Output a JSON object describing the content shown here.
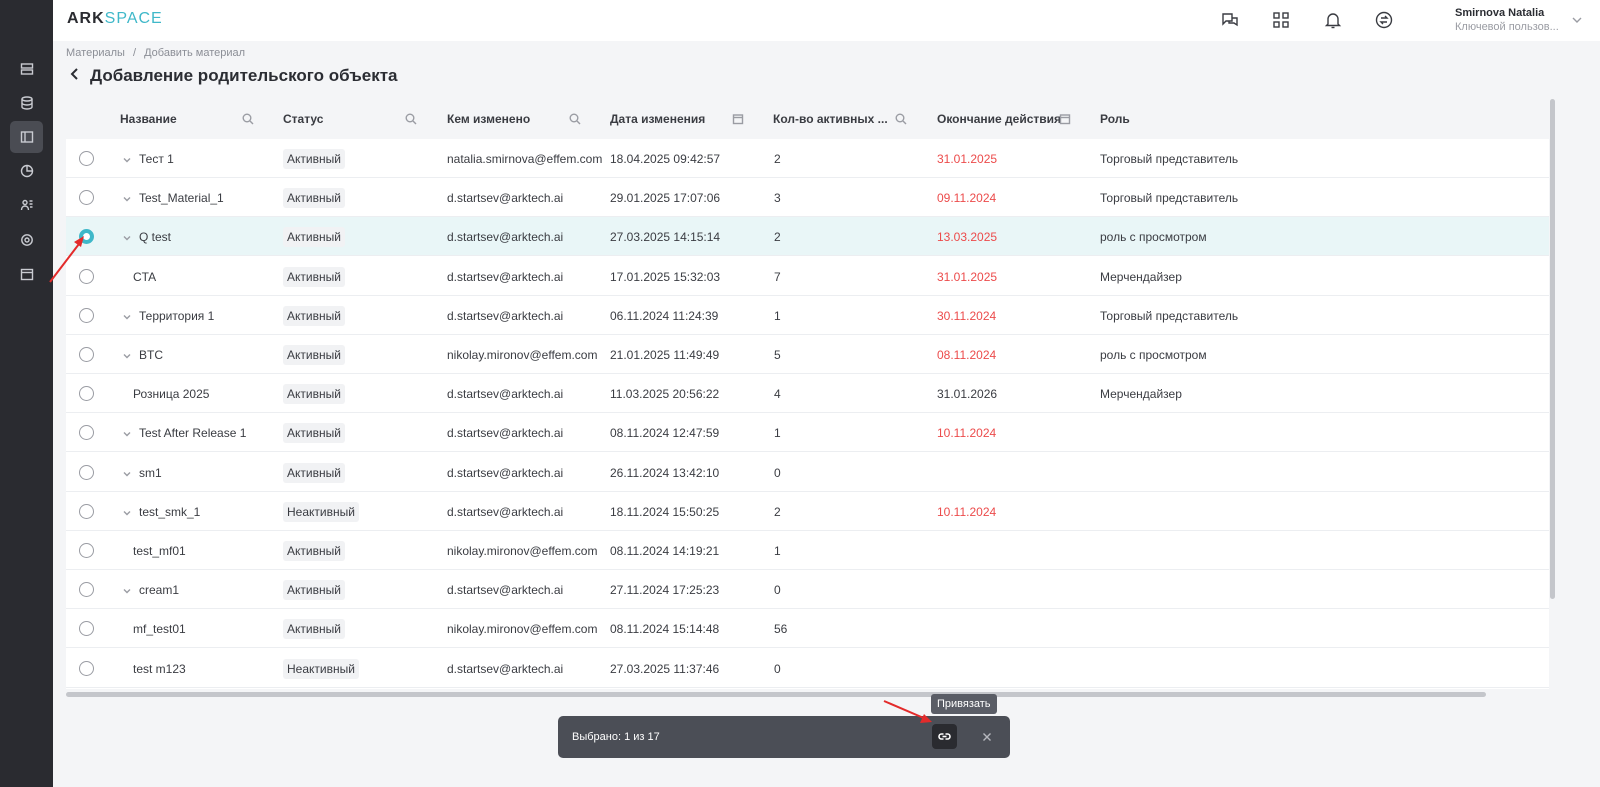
{
  "app": {
    "logo_part1": "ARK",
    "logo_part2": "SPACE"
  },
  "user": {
    "name": "Smirnova Natalia",
    "role": "Ключевой пользов..."
  },
  "breadcrumb": {
    "item1": "Материалы",
    "sep": "/",
    "item2": "Добавить материал"
  },
  "page": {
    "title": "Добавление родительского объекта"
  },
  "table": {
    "headers": {
      "name": "Название",
      "status": "Статус",
      "changed_by": "Кем изменено",
      "changed_at": "Дата изменения",
      "active_count": "Кол-во активных ...",
      "end_date": "Окончание действия",
      "role": "Роль"
    },
    "rows": [
      {
        "name": "Тест 1",
        "expandable": true,
        "status": "Активный",
        "changed_by": "natalia.smirnova@effem.com",
        "changed_at": "18.04.2025 09:42:57",
        "count": "2",
        "end_date": "31.01.2025",
        "end_red": true,
        "role": "Торговый представитель"
      },
      {
        "name": "Test_Material_1",
        "expandable": true,
        "status": "Активный",
        "changed_by": "d.startsev@arktech.ai",
        "changed_at": "29.01.2025 17:07:06",
        "count": "3",
        "end_date": "09.11.2024",
        "end_red": true,
        "role": "Торговый представитель"
      },
      {
        "name": "Q test",
        "expandable": true,
        "status": "Активный",
        "changed_by": "d.startsev@arktech.ai",
        "changed_at": "27.03.2025 14:15:14",
        "count": "2",
        "end_date": "13.03.2025",
        "end_red": true,
        "role": "роль с просмотром",
        "selected": true
      },
      {
        "name": "CTA",
        "expandable": false,
        "status": "Активный",
        "changed_by": "d.startsev@arktech.ai",
        "changed_at": "17.01.2025 15:32:03",
        "count": "7",
        "end_date": "31.01.2025",
        "end_red": true,
        "role": "Мерчендайзер"
      },
      {
        "name": "Территория 1",
        "expandable": true,
        "status": "Активный",
        "changed_by": "d.startsev@arktech.ai",
        "changed_at": "06.11.2024 11:24:39",
        "count": "1",
        "end_date": "30.11.2024",
        "end_red": true,
        "role": "Торговый представитель"
      },
      {
        "name": "BTC",
        "expandable": true,
        "status": "Активный",
        "changed_by": "nikolay.mironov@effem.com",
        "changed_at": "21.01.2025 11:49:49",
        "count": "5",
        "end_date": "08.11.2024",
        "end_red": true,
        "role": "роль с просмотром"
      },
      {
        "name": "Розница 2025",
        "expandable": false,
        "status": "Активный",
        "changed_by": "d.startsev@arktech.ai",
        "changed_at": "11.03.2025 20:56:22",
        "count": "4",
        "end_date": "31.01.2026",
        "end_red": false,
        "role": "Мерчендайзер"
      },
      {
        "name": "Test After Release 1",
        "expandable": true,
        "status": "Активный",
        "changed_by": "d.startsev@arktech.ai",
        "changed_at": "08.11.2024 12:47:59",
        "count": "1",
        "end_date": "10.11.2024",
        "end_red": true,
        "role": ""
      },
      {
        "name": "sm1",
        "expandable": true,
        "status": "Активный",
        "changed_by": "d.startsev@arktech.ai",
        "changed_at": "26.11.2024 13:42:10",
        "count": "0",
        "end_date": "",
        "end_red": false,
        "role": ""
      },
      {
        "name": "test_smk_1",
        "expandable": true,
        "status": "Неактивный",
        "changed_by": "d.startsev@arktech.ai",
        "changed_at": "18.11.2024 15:50:25",
        "count": "2",
        "end_date": "10.11.2024",
        "end_red": true,
        "role": ""
      },
      {
        "name": "test_mf01",
        "expandable": false,
        "status": "Активный",
        "changed_by": "nikolay.mironov@effem.com",
        "changed_at": "08.11.2024 14:19:21",
        "count": "1",
        "end_date": "",
        "end_red": false,
        "role": ""
      },
      {
        "name": "cream1",
        "expandable": true,
        "status": "Активный",
        "changed_by": "d.startsev@arktech.ai",
        "changed_at": "27.11.2024 17:25:23",
        "count": "0",
        "end_date": "",
        "end_red": false,
        "role": ""
      },
      {
        "name": "mf_test01",
        "expandable": false,
        "status": "Активный",
        "changed_by": "nikolay.mironov@effem.com",
        "changed_at": "08.11.2024 15:14:48",
        "count": "56",
        "end_date": "",
        "end_red": false,
        "role": ""
      },
      {
        "name": "test m123",
        "expandable": false,
        "status": "Неактивный",
        "changed_by": "d.startsev@arktech.ai",
        "changed_at": "27.03.2025 11:37:46",
        "count": "0",
        "end_date": "",
        "end_red": false,
        "role": ""
      }
    ]
  },
  "actionbar": {
    "selected_text": "Выбрано: 1 из 17",
    "tooltip": "Привязать"
  },
  "colors": {
    "accent": "#3fb8c9",
    "danger": "#ec4b4b",
    "rail": "#2a2b30",
    "selected_row": "#e9f6f7"
  },
  "icons": {
    "rail": [
      "list-icon",
      "database-icon",
      "materials-icon",
      "chart-icon",
      "users-icon",
      "settings-icon",
      "calendar-icon"
    ],
    "top": [
      "help-chat-icon",
      "apps-grid-icon",
      "bell-icon",
      "sync-icon"
    ]
  }
}
